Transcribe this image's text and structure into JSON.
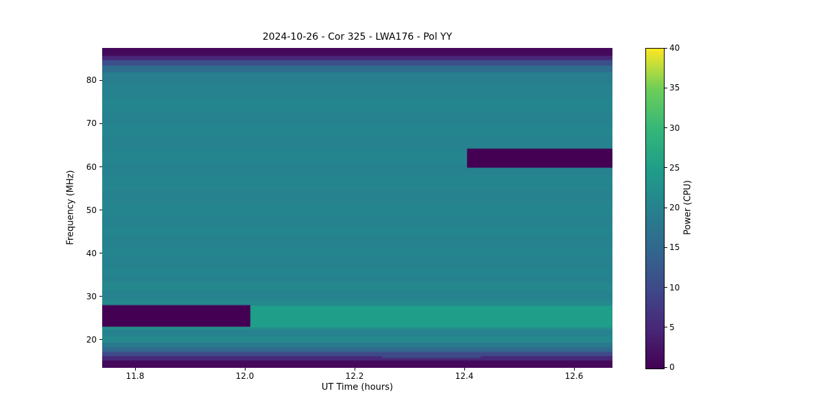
{
  "chart_data": {
    "type": "heatmap",
    "title": "2024-10-26 - Cor 325 - LWA176 - Pol YY",
    "xlabel": "UT Time (hours)",
    "ylabel": "Frequency (MHz)",
    "colorbar_label": "Power (CPU)",
    "colormap": "viridis",
    "x_range": [
      11.74,
      12.67
    ],
    "y_range": [
      13.5,
      87.5
    ],
    "value_range": [
      0,
      40
    ],
    "x_ticks": [
      11.8,
      12.0,
      12.2,
      12.4,
      12.6
    ],
    "x_tick_labels": [
      "11.8",
      "12.0",
      "12.2",
      "12.4",
      "12.6"
    ],
    "y_ticks": [
      20,
      30,
      40,
      50,
      60,
      70,
      80
    ],
    "colorbar_ticks": [
      0,
      5,
      10,
      15,
      20,
      25,
      30,
      35,
      40
    ],
    "legend_position": "right-colorbar",
    "grid": false,
    "frequency_bands": [
      [
        13.5,
        15.3,
        1
      ],
      [
        15.3,
        16.3,
        5
      ],
      [
        16.3,
        17.3,
        10
      ],
      [
        17.3,
        18.3,
        15
      ],
      [
        18.3,
        19.5,
        18
      ],
      [
        19.5,
        21.0,
        21
      ],
      [
        21.0,
        22.5,
        20
      ],
      [
        22.5,
        23.0,
        22
      ],
      [
        23.0,
        28.0,
        25
      ],
      [
        28.0,
        29.5,
        21
      ],
      [
        29.5,
        31.5,
        20
      ],
      [
        31.5,
        33.5,
        21
      ],
      [
        33.5,
        35.0,
        20
      ],
      [
        35.0,
        37.0,
        20.5
      ],
      [
        37.0,
        39.5,
        20
      ],
      [
        39.5,
        41.5,
        20.5
      ],
      [
        41.5,
        44.0,
        20
      ],
      [
        44.0,
        46.5,
        20.5
      ],
      [
        46.5,
        49.0,
        20
      ],
      [
        49.0,
        52.0,
        20.5
      ],
      [
        52.0,
        55.0,
        20
      ],
      [
        55.0,
        58.0,
        20.5
      ],
      [
        58.0,
        61.0,
        20
      ],
      [
        61.0,
        64.0,
        20.5
      ],
      [
        64.0,
        67.0,
        20
      ],
      [
        67.0,
        70.0,
        20.5
      ],
      [
        70.0,
        73.0,
        20
      ],
      [
        73.0,
        76.0,
        20.5
      ],
      [
        76.0,
        79.5,
        20
      ],
      [
        79.5,
        82.0,
        19
      ],
      [
        82.0,
        83.5,
        16
      ],
      [
        83.5,
        84.8,
        11
      ],
      [
        84.8,
        85.8,
        5
      ],
      [
        85.8,
        87.5,
        1
      ]
    ],
    "regions": [
      {
        "t0": 11.74,
        "t1": 12.01,
        "f0": 23.0,
        "f1": 28.0,
        "value": 0
      },
      {
        "t0": 12.405,
        "t1": 12.67,
        "f0": 59.8,
        "f1": 64.2,
        "value": 0
      },
      {
        "t0": 12.25,
        "t1": 12.43,
        "f0": 15.8,
        "f1": 16.6,
        "value": 10
      }
    ],
    "colormap_stops": [
      [
        0.0,
        68,
        1,
        84
      ],
      [
        0.125,
        72,
        40,
        120
      ],
      [
        0.25,
        62,
        74,
        137
      ],
      [
        0.375,
        49,
        104,
        142
      ],
      [
        0.5,
        38,
        130,
        142
      ],
      [
        0.625,
        31,
        158,
        137
      ],
      [
        0.75,
        53,
        183,
        121
      ],
      [
        0.875,
        110,
        206,
        88
      ],
      [
        1.0,
        253,
        231,
        37
      ]
    ]
  }
}
